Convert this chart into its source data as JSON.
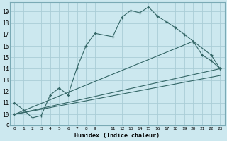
{
  "xlabel": "Humidex (Indice chaleur)",
  "bg_color": "#cce8ef",
  "grid_color": "#aacdd6",
  "line_color": "#336666",
  "xlim": [
    -0.5,
    23.5
  ],
  "ylim": [
    9,
    19.8
  ],
  "yticks": [
    9,
    10,
    11,
    12,
    13,
    14,
    15,
    16,
    17,
    18,
    19
  ],
  "xticks": [
    0,
    1,
    2,
    3,
    4,
    5,
    6,
    7,
    8,
    9,
    11,
    12,
    13,
    14,
    15,
    16,
    17,
    18,
    19,
    20,
    21,
    22,
    23
  ],
  "xtick_labels": [
    "0",
    "1",
    "2",
    "3",
    "4",
    "5",
    "6",
    "7",
    "8",
    "9",
    "11",
    "12",
    "13",
    "14",
    "15",
    "16",
    "17",
    "18",
    "19",
    "20",
    "21",
    "22",
    "23"
  ],
  "line1_x": [
    0,
    1,
    2,
    3,
    4,
    5,
    6,
    7,
    8,
    9,
    11,
    12,
    13,
    14,
    15,
    16,
    17,
    18,
    19,
    20,
    21,
    22,
    23
  ],
  "line1_y": [
    11.0,
    10.4,
    9.7,
    9.9,
    11.7,
    12.3,
    11.7,
    14.1,
    16.0,
    17.1,
    16.8,
    18.5,
    19.1,
    18.9,
    19.4,
    18.6,
    18.1,
    17.6,
    17.0,
    16.4,
    15.2,
    14.7,
    14.0
  ],
  "line2_x": [
    0,
    20,
    22,
    23
  ],
  "line2_y": [
    10.0,
    16.4,
    15.2,
    14.0
  ],
  "line3_x": [
    0,
    23
  ],
  "line3_y": [
    10.0,
    13.4
  ],
  "line4_x": [
    0,
    23
  ],
  "line4_y": [
    10.0,
    14.0
  ]
}
